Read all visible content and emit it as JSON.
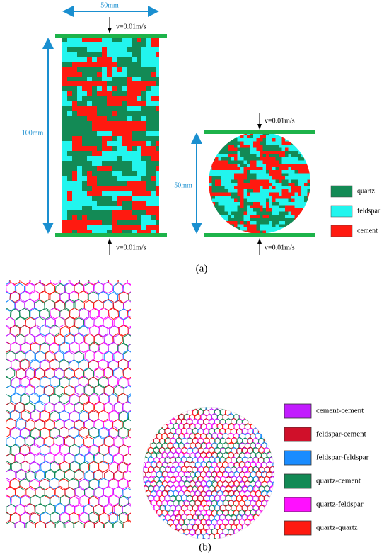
{
  "panel_a": {
    "specimen_width": "50mm",
    "specimen_height": "100mm",
    "disc_diameter": "50mm",
    "velocity_labels": [
      "v=0.01m/s",
      "v=0.01m/s",
      "v=0.01m/s",
      "v=0.01m/s"
    ],
    "legend": [
      {
        "label": "quartz",
        "color": "#138a55"
      },
      {
        "label": "feldspar",
        "color": "#22f5ee"
      },
      {
        "label": "cement",
        "color": "#ff1a10"
      }
    ],
    "caption": "(a)"
  },
  "panel_b": {
    "legend": [
      {
        "label": "cement-cement",
        "color": "#c21cff"
      },
      {
        "label": "feldspar-cement",
        "color": "#d0102a"
      },
      {
        "label": "feldspar-feldspar",
        "color": "#1a8cff"
      },
      {
        "label": "quartz-cement",
        "color": "#138a55"
      },
      {
        "label": "quartz-feldspar",
        "color": "#ff10ff"
      },
      {
        "label": "quartz-quartz",
        "color": "#ff1a10"
      }
    ],
    "caption": "(b)"
  }
}
